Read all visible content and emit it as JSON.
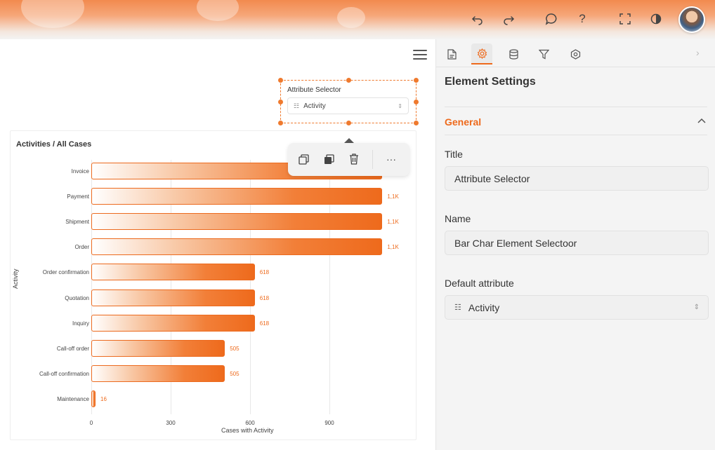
{
  "topbar": {
    "icons": [
      "undo-icon",
      "redo-icon",
      "comment-icon",
      "help-icon",
      "fullscreen-icon",
      "theme-icon"
    ]
  },
  "attribute_selector": {
    "title": "Attribute Selector",
    "value": "Activity"
  },
  "chart_data": {
    "type": "bar",
    "orientation": "horizontal",
    "title": "Activities / All Cases",
    "xlabel": "Cases with Activity",
    "ylabel": "Activity",
    "xlim": [
      0,
      1100
    ],
    "xticks": [
      "0",
      "300",
      "600",
      "900"
    ],
    "categories": [
      "Invoice",
      "Payment",
      "Shipment",
      "Order",
      "Order confirmation",
      "Quotation",
      "Inquiry",
      "Call-off order",
      "Call-off confirmation",
      "Maintenance"
    ],
    "values": [
      1100,
      1100,
      1100,
      1100,
      618,
      618,
      618,
      505,
      505,
      16
    ],
    "value_labels": [
      "",
      "1,1K",
      "1,1K",
      "1,1K",
      "618",
      "618",
      "618",
      "505",
      "505",
      "16"
    ],
    "bar_color": "#ee6a1c"
  },
  "panel": {
    "title": "Element Settings",
    "section": "General",
    "fields": {
      "title_label": "Title",
      "title_value": "Attribute Selector",
      "name_label": "Name",
      "name_value": "Bar Char Element Selectoor",
      "default_label": "Default attribute",
      "default_value": "Activity"
    }
  },
  "accent_color": "#ee6a1c"
}
